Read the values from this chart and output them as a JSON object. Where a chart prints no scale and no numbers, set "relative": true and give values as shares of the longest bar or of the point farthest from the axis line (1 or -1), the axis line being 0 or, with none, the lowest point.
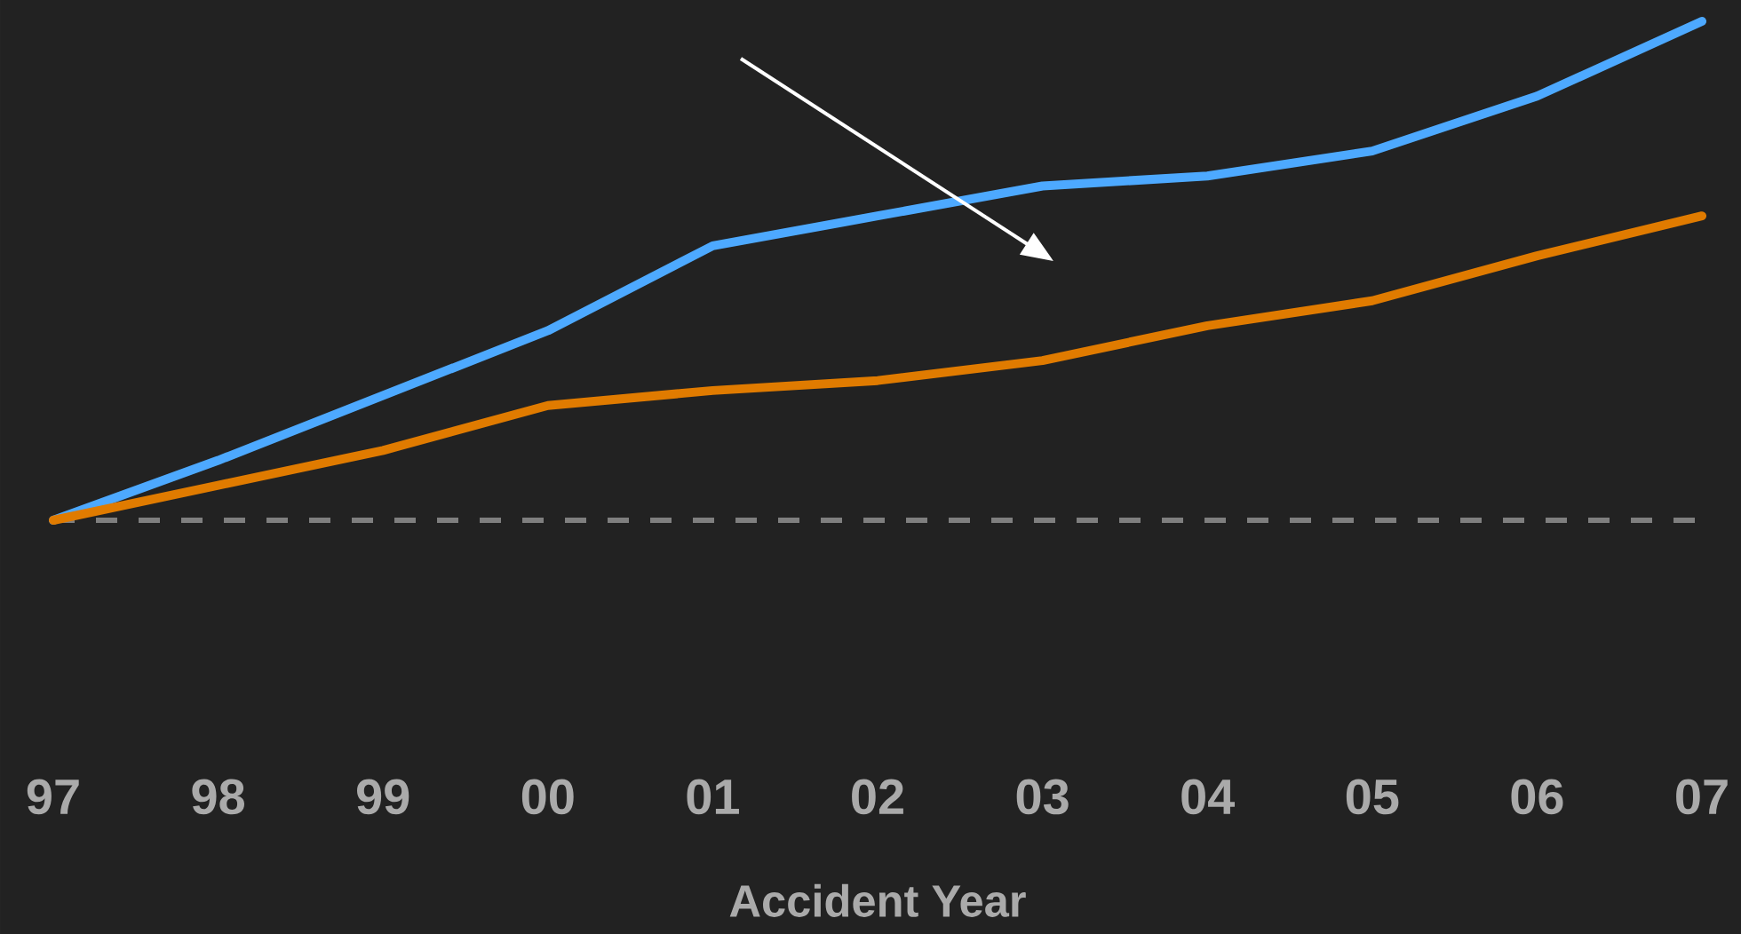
{
  "chart_data": {
    "type": "line",
    "relative": true,
    "xlabel": "Accident Year",
    "categories": [
      "97",
      "98",
      "99",
      "00",
      "01",
      "02",
      "03",
      "04",
      "05",
      "06",
      "07"
    ],
    "series": [
      {
        "color": "#4da9ff",
        "values": [
          0,
          0.12,
          0.25,
          0.38,
          0.55,
          0.61,
          0.67,
          0.69,
          0.74,
          0.85,
          1
        ]
      },
      {
        "color": "#e07b00",
        "values": [
          0,
          0.07,
          0.14,
          0.23,
          0.26,
          0.28,
          0.32,
          0.39,
          0.44,
          0.53,
          0.61
        ]
      }
    ],
    "ref_lines": [
      {
        "axis": "y",
        "value": 0,
        "color": "#7f7f7f",
        "line_style": "dashed"
      }
    ],
    "marker": "none",
    "line_style": "solid"
  }
}
